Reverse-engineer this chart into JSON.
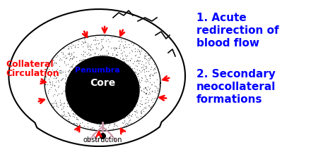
{
  "bg_color": "#ffffff",
  "brain_outline_color": "#000000",
  "penumbra_color": "#cccccc",
  "penumbra_dot_color": "#555555",
  "core_color": "#000000",
  "core_text": "Core",
  "core_text_color": "#ffffff",
  "penumbra_text": "Penumbra",
  "penumbra_text_color": "#0000ff",
  "collateral_text_line1": "Collateral",
  "collateral_text_line2": "Circulation",
  "collateral_text_color": "#ff0000",
  "obstruction_text": "obstruction",
  "obstruction_text_color": "#000000",
  "label1_line1": "1. Acute",
  "label1_line2": "redirection of",
  "label1_line3": "blood flow",
  "label1_color": "#0000ff",
  "label2_line1": "2. Secondary",
  "label2_line2": "neocollateral",
  "label2_line3": "formations",
  "label2_color": "#0000ff",
  "arrow_color": "#ff0000",
  "vessel_color": "#cc99aa",
  "figsize": [
    4.74,
    2.09
  ],
  "dpi": 100
}
